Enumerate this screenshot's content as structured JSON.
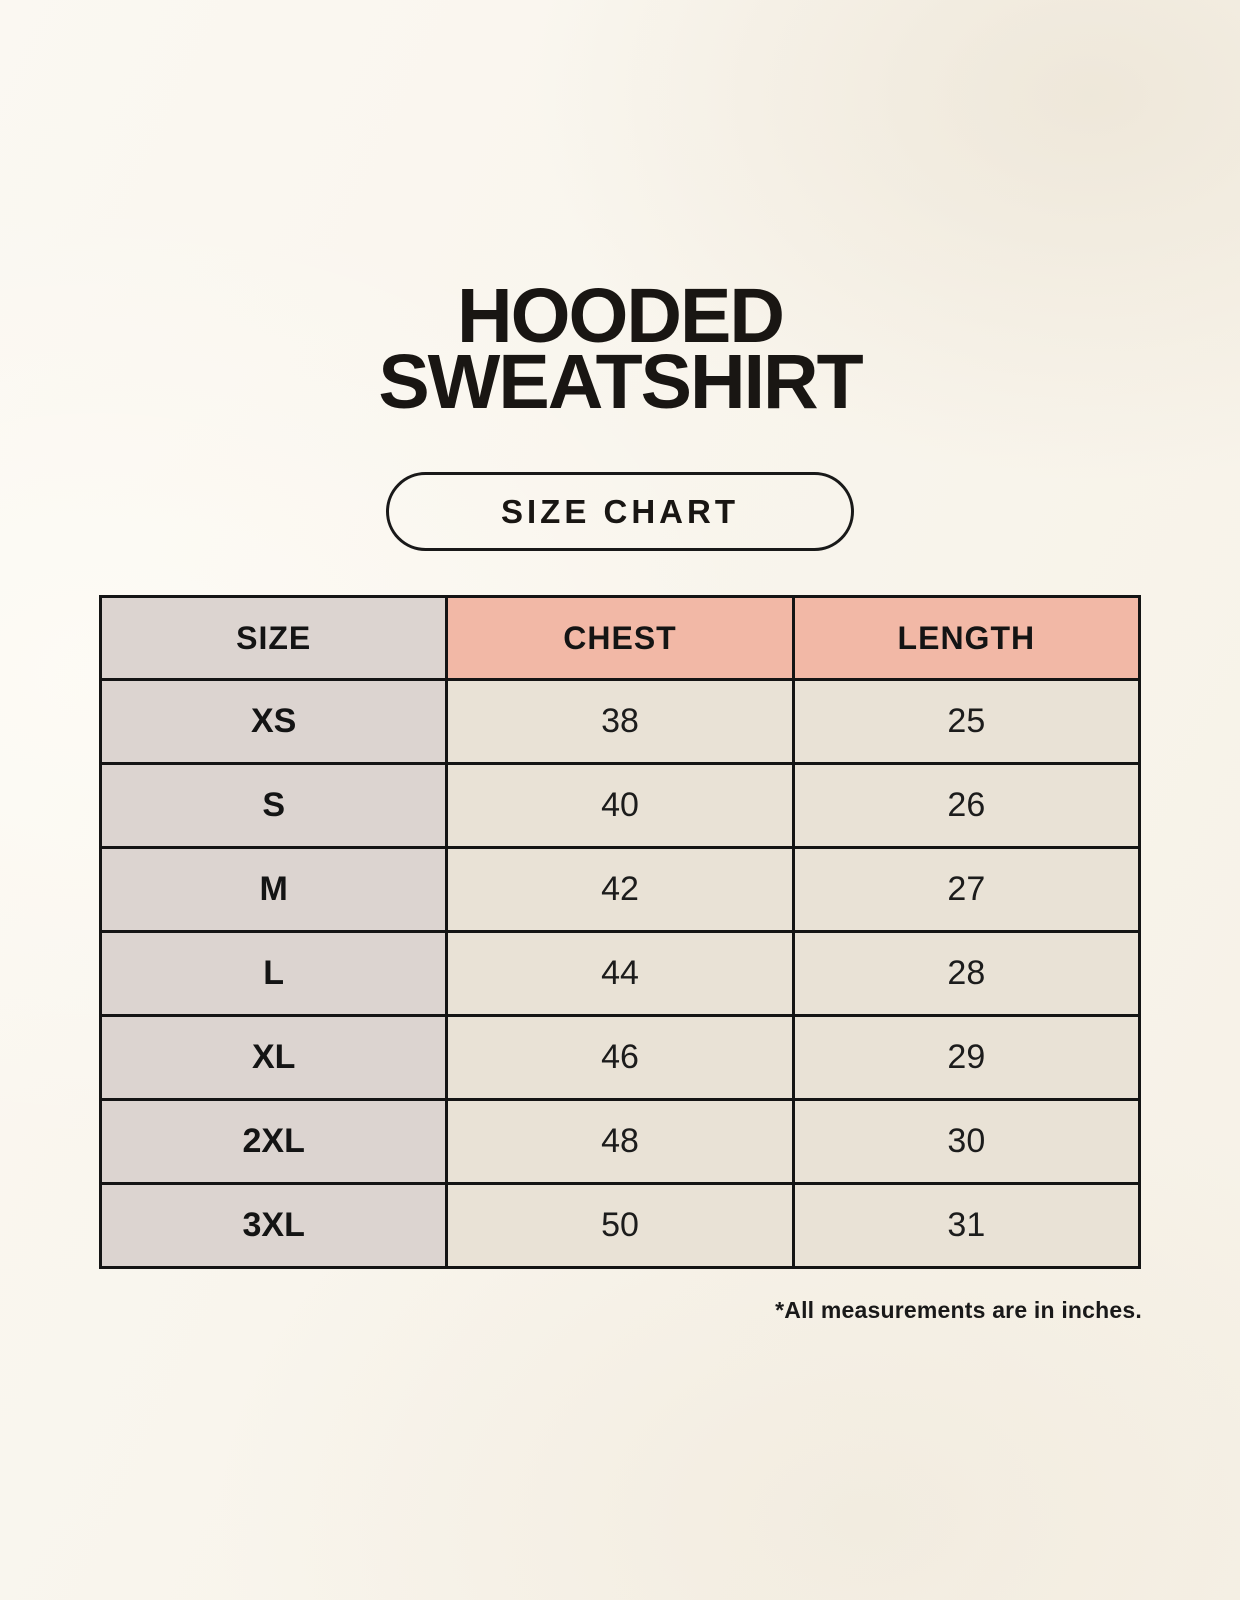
{
  "header": {
    "title_line1": "HOODED",
    "title_line2": "SWEATSHIRT",
    "badge_label": "SIZE CHART"
  },
  "chart_data": {
    "type": "table",
    "title": "HOODED SWEATSHIRT",
    "subtitle": "SIZE CHART",
    "columns": [
      "SIZE",
      "CHEST",
      "LENGTH"
    ],
    "rows": [
      [
        "XS",
        38,
        25
      ],
      [
        "S",
        40,
        26
      ],
      [
        "M",
        42,
        27
      ],
      [
        "L",
        44,
        28
      ],
      [
        "XL",
        46,
        29
      ],
      [
        "2XL",
        48,
        30
      ],
      [
        "3XL",
        50,
        31
      ]
    ],
    "units": "inches"
  },
  "footnote": "*All measurements are in inches.",
  "colors": {
    "background": "#f9f5ec",
    "header_accent": "#f2b8a6",
    "size_column": "#dcd4d0",
    "cell": "#e9e2d6",
    "border": "#141414",
    "text": "#191919"
  }
}
